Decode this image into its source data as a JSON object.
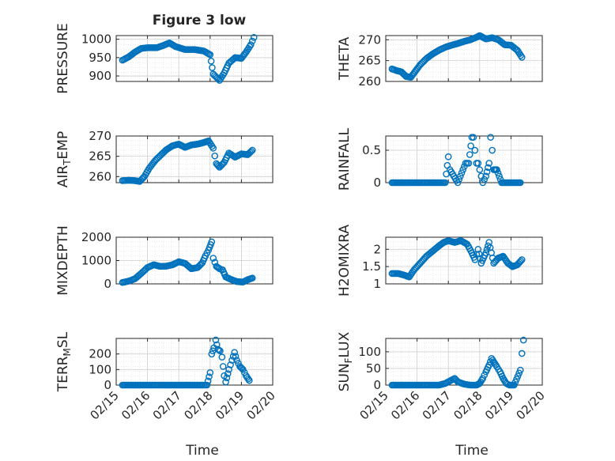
{
  "figure_title": "Figure 3 low",
  "colors": {
    "marker": "#0072bd",
    "grid": "#dcdcdc",
    "axis": "#262626"
  },
  "chart_data": [
    {
      "id": "pressure",
      "type": "scatter",
      "ylabel": "PRESSURE",
      "title": "Figure 3 low",
      "xlim": [
        "02/15",
        "02/20"
      ],
      "ylim": [
        885,
        1010
      ],
      "yticks": [
        "1000",
        "950",
        "900"
      ],
      "xtick_labels": [],
      "grid": true,
      "minor_grid": true,
      "x": [
        "02/15",
        "02/16",
        "02/17",
        "02/18",
        "02/19"
      ],
      "y": [
        945,
        976,
        985,
        970,
        945
      ],
      "series": [
        {
          "x": 15.2,
          "y": 943
        },
        {
          "x": 15.4,
          "y": 952
        },
        {
          "x": 15.6,
          "y": 965
        },
        {
          "x": 15.8,
          "y": 975
        },
        {
          "x": 16.0,
          "y": 977
        },
        {
          "x": 16.3,
          "y": 977
        },
        {
          "x": 16.5,
          "y": 983
        },
        {
          "x": 16.7,
          "y": 990
        },
        {
          "x": 16.9,
          "y": 980
        },
        {
          "x": 17.2,
          "y": 972
        },
        {
          "x": 17.5,
          "y": 972
        },
        {
          "x": 17.8,
          "y": 968
        },
        {
          "x": 18.0,
          "y": 958
        },
        {
          "x": 18.1,
          "y": 905
        },
        {
          "x": 18.3,
          "y": 888
        },
        {
          "x": 18.45,
          "y": 908
        },
        {
          "x": 18.6,
          "y": 935
        },
        {
          "x": 18.8,
          "y": 950
        },
        {
          "x": 19.0,
          "y": 948
        },
        {
          "x": 19.15,
          "y": 965
        },
        {
          "x": 19.3,
          "y": 985
        },
        {
          "x": 19.4,
          "y": 1005
        }
      ]
    },
    {
      "id": "theta",
      "type": "scatter",
      "ylabel": "THETA",
      "xlim": [
        "02/15",
        "02/20"
      ],
      "ylim": [
        260,
        271
      ],
      "yticks": [
        "270",
        "265",
        "260"
      ],
      "xtick_labels": [],
      "grid": true,
      "minor_grid": true,
      "series": [
        {
          "x": 15.2,
          "y": 263
        },
        {
          "x": 15.35,
          "y": 262.6
        },
        {
          "x": 15.5,
          "y": 262.3
        },
        {
          "x": 15.65,
          "y": 261.2
        },
        {
          "x": 15.8,
          "y": 261
        },
        {
          "x": 15.95,
          "y": 262.5
        },
        {
          "x": 16.1,
          "y": 264
        },
        {
          "x": 16.3,
          "y": 265.5
        },
        {
          "x": 16.5,
          "y": 266.6
        },
        {
          "x": 16.7,
          "y": 267.5
        },
        {
          "x": 16.9,
          "y": 268.2
        },
        {
          "x": 17.1,
          "y": 268.7
        },
        {
          "x": 17.3,
          "y": 269.1
        },
        {
          "x": 17.5,
          "y": 269.6
        },
        {
          "x": 17.7,
          "y": 270
        },
        {
          "x": 17.9,
          "y": 270.6
        },
        {
          "x": 18.0,
          "y": 271
        },
        {
          "x": 18.2,
          "y": 270.2
        },
        {
          "x": 18.4,
          "y": 270.5
        },
        {
          "x": 18.6,
          "y": 270
        },
        {
          "x": 18.8,
          "y": 268.8
        },
        {
          "x": 19.0,
          "y": 268.7
        },
        {
          "x": 19.2,
          "y": 267.5
        },
        {
          "x": 19.35,
          "y": 265.8
        }
      ]
    },
    {
      "id": "air_temp",
      "type": "scatter",
      "ylabel": "AIR_TEMP",
      "ylabel_main": "AIR",
      "ylabel_sub": "T",
      "ylabel_rest": "EMP",
      "xlim": [
        "02/15",
        "02/20"
      ],
      "ylim": [
        258.5,
        270
      ],
      "yticks": [
        "270",
        "265",
        "260"
      ],
      "xtick_labels": [],
      "grid": true,
      "minor_grid": true,
      "series": [
        {
          "x": 15.2,
          "y": 259
        },
        {
          "x": 15.4,
          "y": 259.1
        },
        {
          "x": 15.6,
          "y": 259
        },
        {
          "x": 15.75,
          "y": 258.8
        },
        {
          "x": 15.9,
          "y": 260
        },
        {
          "x": 16.05,
          "y": 262
        },
        {
          "x": 16.25,
          "y": 264
        },
        {
          "x": 16.45,
          "y": 265.5
        },
        {
          "x": 16.6,
          "y": 266.6
        },
        {
          "x": 16.8,
          "y": 267.6
        },
        {
          "x": 17.0,
          "y": 268
        },
        {
          "x": 17.2,
          "y": 267.2
        },
        {
          "x": 17.4,
          "y": 267.8
        },
        {
          "x": 17.6,
          "y": 268
        },
        {
          "x": 17.8,
          "y": 268.4
        },
        {
          "x": 17.95,
          "y": 268.8
        },
        {
          "x": 18.1,
          "y": 267
        },
        {
          "x": 18.2,
          "y": 263.2
        },
        {
          "x": 18.3,
          "y": 262.3
        },
        {
          "x": 18.45,
          "y": 263.5
        },
        {
          "x": 18.6,
          "y": 265.8
        },
        {
          "x": 18.8,
          "y": 264.8
        },
        {
          "x": 19.0,
          "y": 265.6
        },
        {
          "x": 19.2,
          "y": 265.4
        },
        {
          "x": 19.35,
          "y": 266.5
        }
      ]
    },
    {
      "id": "rainfall",
      "type": "scatter",
      "ylabel": "RAINFALL",
      "xlim": [
        "02/15",
        "02/20"
      ],
      "ylim": [
        0,
        0.72
      ],
      "yticks": [
        "0.5",
        "0"
      ],
      "xtick_labels": [],
      "grid": true,
      "minor_grid": true,
      "series": [
        {
          "x": 15.2,
          "y": 0
        },
        {
          "x": 15.5,
          "y": 0
        },
        {
          "x": 15.8,
          "y": 0
        },
        {
          "x": 16.1,
          "y": 0
        },
        {
          "x": 16.4,
          "y": 0
        },
        {
          "x": 16.7,
          "y": 0
        },
        {
          "x": 16.9,
          "y": 0
        },
        {
          "x": 17.0,
          "y": 0.4
        },
        {
          "x": 17.05,
          "y": 0.2
        },
        {
          "x": 17.3,
          "y": 0
        },
        {
          "x": 17.55,
          "y": 0.3
        },
        {
          "x": 17.65,
          "y": 0.3
        },
        {
          "x": 17.75,
          "y": 0.7
        },
        {
          "x": 17.8,
          "y": 0.7
        },
        {
          "x": 17.9,
          "y": 0.3
        },
        {
          "x": 17.95,
          "y": 0.3
        },
        {
          "x": 18.0,
          "y": 0.2
        },
        {
          "x": 18.05,
          "y": 0.1
        },
        {
          "x": 18.1,
          "y": 0
        },
        {
          "x": 18.2,
          "y": 0.1
        },
        {
          "x": 18.3,
          "y": 0.3
        },
        {
          "x": 18.35,
          "y": 0.7
        },
        {
          "x": 18.4,
          "y": 0.5
        },
        {
          "x": 18.45,
          "y": 0.2
        },
        {
          "x": 18.55,
          "y": 0.2
        },
        {
          "x": 18.7,
          "y": 0
        },
        {
          "x": 19.0,
          "y": 0
        },
        {
          "x": 19.3,
          "y": 0
        }
      ]
    },
    {
      "id": "mixdepth",
      "type": "scatter",
      "ylabel": "MIXDEPTH",
      "xlim": [
        "02/15",
        "02/20"
      ],
      "ylim": [
        0,
        2000
      ],
      "yticks": [
        "2000",
        "1000",
        "0"
      ],
      "xtick_labels": [],
      "grid": true,
      "minor_grid": true,
      "series": [
        {
          "x": 15.2,
          "y": 60
        },
        {
          "x": 15.4,
          "y": 120
        },
        {
          "x": 15.6,
          "y": 220
        },
        {
          "x": 15.8,
          "y": 450
        },
        {
          "x": 16.0,
          "y": 700
        },
        {
          "x": 16.2,
          "y": 820
        },
        {
          "x": 16.4,
          "y": 750
        },
        {
          "x": 16.6,
          "y": 760
        },
        {
          "x": 16.8,
          "y": 820
        },
        {
          "x": 17.0,
          "y": 950
        },
        {
          "x": 17.2,
          "y": 880
        },
        {
          "x": 17.4,
          "y": 650
        },
        {
          "x": 17.6,
          "y": 700
        },
        {
          "x": 17.75,
          "y": 900
        },
        {
          "x": 17.85,
          "y": 1200
        },
        {
          "x": 17.95,
          "y": 1450
        },
        {
          "x": 18.05,
          "y": 1800
        },
        {
          "x": 18.1,
          "y": 1100
        },
        {
          "x": 18.2,
          "y": 750
        },
        {
          "x": 18.3,
          "y": 650
        },
        {
          "x": 18.4,
          "y": 600
        },
        {
          "x": 18.5,
          "y": 300
        },
        {
          "x": 18.65,
          "y": 200
        },
        {
          "x": 18.85,
          "y": 100
        },
        {
          "x": 19.05,
          "y": 80
        },
        {
          "x": 19.2,
          "y": 180
        },
        {
          "x": 19.35,
          "y": 250
        }
      ]
    },
    {
      "id": "h2omixra",
      "type": "scatter",
      "ylabel": "H2OMIXRA",
      "xlim": [
        "02/15",
        "02/20"
      ],
      "ylim": [
        1,
        2.35
      ],
      "yticks": [
        "2",
        "1.5",
        "1"
      ],
      "xtick_labels": [],
      "grid": true,
      "minor_grid": true,
      "series": [
        {
          "x": 15.2,
          "y": 1.3
        },
        {
          "x": 15.4,
          "y": 1.3
        },
        {
          "x": 15.6,
          "y": 1.25
        },
        {
          "x": 15.75,
          "y": 1.2
        },
        {
          "x": 15.9,
          "y": 1.4
        },
        {
          "x": 16.1,
          "y": 1.6
        },
        {
          "x": 16.3,
          "y": 1.8
        },
        {
          "x": 16.5,
          "y": 1.95
        },
        {
          "x": 16.7,
          "y": 2.1
        },
        {
          "x": 16.85,
          "y": 2.2
        },
        {
          "x": 17.0,
          "y": 2.25
        },
        {
          "x": 17.2,
          "y": 2.2
        },
        {
          "x": 17.4,
          "y": 2.25
        },
        {
          "x": 17.6,
          "y": 2.15
        },
        {
          "x": 17.75,
          "y": 1.9
        },
        {
          "x": 17.85,
          "y": 1.7
        },
        {
          "x": 17.95,
          "y": 2.0
        },
        {
          "x": 18.05,
          "y": 1.6
        },
        {
          "x": 18.2,
          "y": 1.9
        },
        {
          "x": 18.3,
          "y": 2.2
        },
        {
          "x": 18.45,
          "y": 1.6
        },
        {
          "x": 18.6,
          "y": 1.75
        },
        {
          "x": 18.75,
          "y": 1.8
        },
        {
          "x": 18.9,
          "y": 1.6
        },
        {
          "x": 19.05,
          "y": 1.5
        },
        {
          "x": 19.2,
          "y": 1.55
        },
        {
          "x": 19.35,
          "y": 1.7
        }
      ]
    },
    {
      "id": "terr_msl",
      "type": "scatter",
      "ylabel": "TERR_MSL",
      "ylabel_main": "TERR",
      "ylabel_sub": "M",
      "ylabel_rest": "SL",
      "xlim": [
        "02/15",
        "02/20"
      ],
      "ylim": [
        0,
        300
      ],
      "yticks": [
        "200",
        "100",
        "0"
      ],
      "xtick_labels": [
        "02/15",
        "02/16",
        "02/17",
        "02/18",
        "02/19",
        "02/20"
      ],
      "xlabel": "Time",
      "grid": true,
      "minor_grid": true,
      "series": [
        {
          "x": 15.2,
          "y": 0
        },
        {
          "x": 15.5,
          "y": 0
        },
        {
          "x": 15.8,
          "y": 0
        },
        {
          "x": 16.1,
          "y": 0
        },
        {
          "x": 16.4,
          "y": 0
        },
        {
          "x": 16.7,
          "y": 0
        },
        {
          "x": 17.0,
          "y": 0
        },
        {
          "x": 17.3,
          "y": 0
        },
        {
          "x": 17.6,
          "y": 0
        },
        {
          "x": 17.9,
          "y": 0
        },
        {
          "x": 18.0,
          "y": 80
        },
        {
          "x": 18.05,
          "y": 200
        },
        {
          "x": 18.12,
          "y": 240
        },
        {
          "x": 18.18,
          "y": 290
        },
        {
          "x": 18.25,
          "y": 230
        },
        {
          "x": 18.32,
          "y": 220
        },
        {
          "x": 18.38,
          "y": 180
        },
        {
          "x": 18.45,
          "y": 60
        },
        {
          "x": 18.5,
          "y": 20
        },
        {
          "x": 18.6,
          "y": 100
        },
        {
          "x": 18.7,
          "y": 160
        },
        {
          "x": 18.78,
          "y": 210
        },
        {
          "x": 18.85,
          "y": 160
        },
        {
          "x": 18.95,
          "y": 120
        },
        {
          "x": 19.05,
          "y": 100
        },
        {
          "x": 19.15,
          "y": 60
        },
        {
          "x": 19.25,
          "y": 30
        }
      ]
    },
    {
      "id": "sun_flux",
      "type": "scatter",
      "ylabel": "SUN_FLUX",
      "ylabel_main": "SUN",
      "ylabel_sub": "F",
      "ylabel_rest": "LUX",
      "xlim": [
        "02/15",
        "02/20"
      ],
      "ylim": [
        0,
        140
      ],
      "yticks": [
        "100",
        "50",
        "0"
      ],
      "xtick_labels": [
        "02/15",
        "02/16",
        "02/17",
        "02/18",
        "02/19",
        "02/20"
      ],
      "xlabel": "Time",
      "grid": true,
      "minor_grid": true,
      "series": [
        {
          "x": 15.2,
          "y": 0
        },
        {
          "x": 15.5,
          "y": 0
        },
        {
          "x": 15.8,
          "y": 0
        },
        {
          "x": 16.1,
          "y": 0
        },
        {
          "x": 16.4,
          "y": 0
        },
        {
          "x": 16.7,
          "y": 0
        },
        {
          "x": 16.9,
          "y": 5
        },
        {
          "x": 17.1,
          "y": 15
        },
        {
          "x": 17.2,
          "y": 20
        },
        {
          "x": 17.3,
          "y": 10
        },
        {
          "x": 17.5,
          "y": 3
        },
        {
          "x": 17.7,
          "y": 0
        },
        {
          "x": 17.9,
          "y": 0
        },
        {
          "x": 18.0,
          "y": 5
        },
        {
          "x": 18.1,
          "y": 20
        },
        {
          "x": 18.2,
          "y": 40
        },
        {
          "x": 18.3,
          "y": 60
        },
        {
          "x": 18.38,
          "y": 80
        },
        {
          "x": 18.45,
          "y": 70
        },
        {
          "x": 18.55,
          "y": 55
        },
        {
          "x": 18.65,
          "y": 40
        },
        {
          "x": 18.75,
          "y": 20
        },
        {
          "x": 18.85,
          "y": 5
        },
        {
          "x": 18.95,
          "y": 0
        },
        {
          "x": 19.1,
          "y": 0
        },
        {
          "x": 19.3,
          "y": 45
        },
        {
          "x": 19.35,
          "y": 95
        },
        {
          "x": 19.4,
          "y": 135
        }
      ]
    }
  ]
}
